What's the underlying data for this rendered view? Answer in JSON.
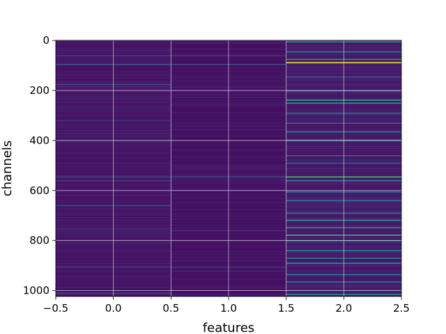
{
  "chart_data": {
    "type": "heatmap",
    "title": "",
    "xlabel": "features",
    "ylabel": "channels",
    "xlim": [
      -0.5,
      2.5
    ],
    "ylim": [
      1023.5,
      -0.5
    ],
    "x_ticks": [
      -0.5,
      0.0,
      0.5,
      1.0,
      1.5,
      2.0,
      2.5
    ],
    "x_tick_labels": [
      "−0.5",
      "0.0",
      "0.5",
      "1.0",
      "1.5",
      "2.0",
      "2.5"
    ],
    "y_ticks": [
      0,
      200,
      400,
      600,
      800,
      1000
    ],
    "y_tick_labels": [
      "0",
      "200",
      "400",
      "600",
      "800",
      "1000"
    ],
    "grid": true,
    "colormap": "viridis",
    "columns": [
      0,
      1,
      2
    ],
    "rows": 1024,
    "column_base_level": [
      0.05,
      0.04,
      0.06
    ],
    "highlighted_rows": {
      "column_0": [
        {
          "channel": 60,
          "value": 0.18
        },
        {
          "channel": 95,
          "value": 0.3
        },
        {
          "channel": 175,
          "value": 0.22
        },
        {
          "channel": 320,
          "value": 0.15
        },
        {
          "channel": 545,
          "value": 0.2
        },
        {
          "channel": 560,
          "value": 0.18
        },
        {
          "channel": 660,
          "value": 0.2
        },
        {
          "channel": 905,
          "value": 0.18
        },
        {
          "channel": 1010,
          "value": 0.2
        }
      ],
      "column_1": [
        {
          "channel": 60,
          "value": 0.15
        },
        {
          "channel": 95,
          "value": 0.25
        },
        {
          "channel": 545,
          "value": 0.22
        },
        {
          "channel": 760,
          "value": 0.15
        },
        {
          "channel": 905,
          "value": 0.15
        }
      ],
      "column_2": [
        {
          "channel": 5,
          "value": 0.5
        },
        {
          "channel": 45,
          "value": 0.45
        },
        {
          "channel": 75,
          "value": 0.5
        },
        {
          "channel": 88,
          "value": 0.98
        },
        {
          "channel": 145,
          "value": 0.3
        },
        {
          "channel": 200,
          "value": 0.35
        },
        {
          "channel": 238,
          "value": 0.6
        },
        {
          "channel": 250,
          "value": 0.55
        },
        {
          "channel": 290,
          "value": 0.4
        },
        {
          "channel": 330,
          "value": 0.35
        },
        {
          "channel": 365,
          "value": 0.45
        },
        {
          "channel": 398,
          "value": 0.6
        },
        {
          "channel": 460,
          "value": 0.35
        },
        {
          "channel": 490,
          "value": 0.3
        },
        {
          "channel": 545,
          "value": 0.7
        },
        {
          "channel": 560,
          "value": 0.45
        },
        {
          "channel": 605,
          "value": 0.4
        },
        {
          "channel": 640,
          "value": 0.45
        },
        {
          "channel": 690,
          "value": 0.4
        },
        {
          "channel": 718,
          "value": 0.55
        },
        {
          "channel": 748,
          "value": 0.5
        },
        {
          "channel": 778,
          "value": 0.65
        },
        {
          "channel": 800,
          "value": 0.45
        },
        {
          "channel": 840,
          "value": 0.5
        },
        {
          "channel": 870,
          "value": 0.45
        },
        {
          "channel": 890,
          "value": 0.55
        },
        {
          "channel": 935,
          "value": 0.4
        },
        {
          "channel": 965,
          "value": 0.45
        },
        {
          "channel": 1015,
          "value": 0.5
        }
      ]
    }
  }
}
